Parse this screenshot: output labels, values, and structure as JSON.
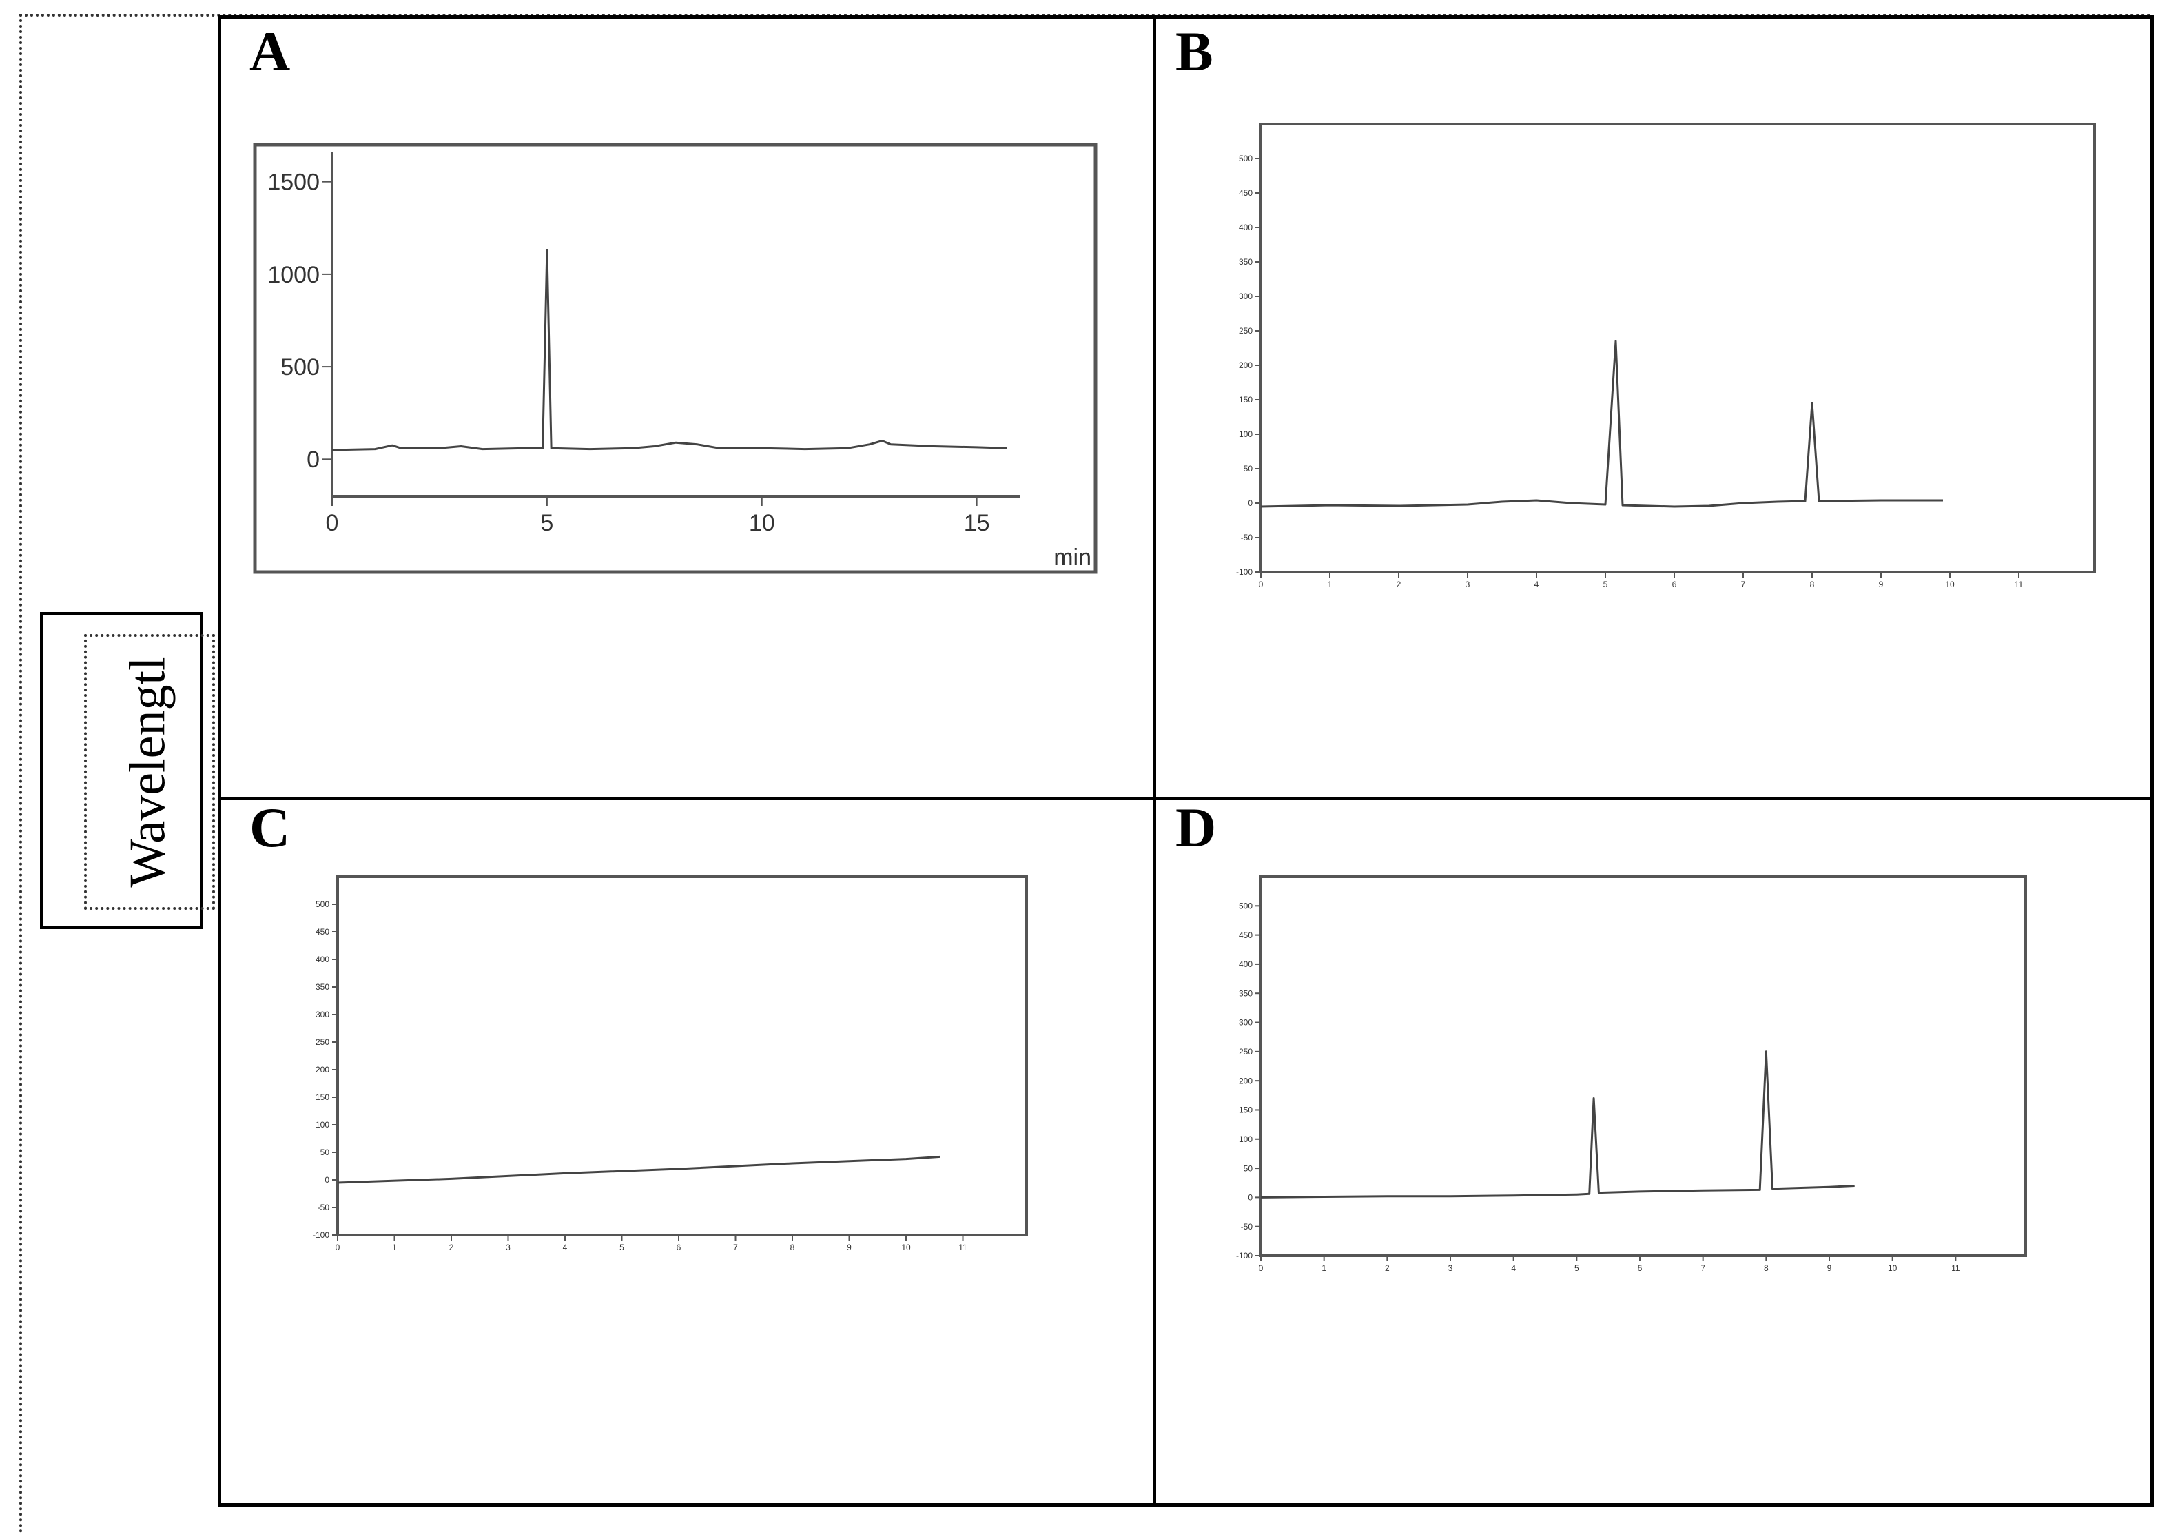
{
  "side_label": "Wavelengtl",
  "chart_data": [
    {
      "panel": "A",
      "type": "line",
      "xlabel": "min",
      "ylabel": "",
      "xlim": [
        0,
        16
      ],
      "ylim": [
        -200,
        1700
      ],
      "x_ticks": [
        0,
        5,
        10,
        15
      ],
      "y_ticks": [
        0,
        500,
        1000,
        1500
      ],
      "series": [
        {
          "points": [
            [
              0,
              50
            ],
            [
              1,
              55
            ],
            [
              1.4,
              75
            ],
            [
              1.6,
              60
            ],
            [
              2.5,
              60
            ],
            [
              3,
              70
            ],
            [
              3.5,
              55
            ],
            [
              4.5,
              60
            ],
            [
              4.9,
              60
            ],
            [
              5.0,
              1130
            ],
            [
              5.1,
              60
            ],
            [
              6,
              55
            ],
            [
              7,
              60
            ],
            [
              7.5,
              70
            ],
            [
              8,
              90
            ],
            [
              8.5,
              80
            ],
            [
              9,
              60
            ],
            [
              10,
              60
            ],
            [
              11,
              55
            ],
            [
              12,
              60
            ],
            [
              12.5,
              80
            ],
            [
              12.8,
              100
            ],
            [
              13,
              80
            ],
            [
              14,
              70
            ],
            [
              15,
              65
            ],
            [
              15.7,
              60
            ]
          ]
        }
      ]
    },
    {
      "panel": "B",
      "type": "line",
      "xlabel": "",
      "ylabel": "",
      "xlim": [
        0,
        12
      ],
      "ylim": [
        -100,
        550
      ],
      "x_ticks": [
        0,
        1,
        2,
        3,
        4,
        5,
        6,
        7,
        8,
        9,
        10,
        11
      ],
      "y_ticks": [
        -100,
        -50,
        0,
        50,
        100,
        150,
        200,
        250,
        300,
        350,
        400,
        450,
        500
      ],
      "series": [
        {
          "points": [
            [
              0,
              -5
            ],
            [
              1,
              -3
            ],
            [
              2,
              -4
            ],
            [
              3,
              -2
            ],
            [
              3.5,
              2
            ],
            [
              4,
              4
            ],
            [
              4.5,
              0
            ],
            [
              5,
              -2
            ],
            [
              5.15,
              235
            ],
            [
              5.25,
              -3
            ],
            [
              6,
              -5
            ],
            [
              6.5,
              -4
            ],
            [
              7,
              0
            ],
            [
              7.5,
              2
            ],
            [
              7.9,
              3
            ],
            [
              8.0,
              145
            ],
            [
              8.1,
              3
            ],
            [
              9,
              4
            ],
            [
              9.9,
              4
            ]
          ]
        }
      ]
    },
    {
      "panel": "C",
      "type": "line",
      "xlabel": "",
      "ylabel": "",
      "xlim": [
        0,
        12
      ],
      "ylim": [
        -100,
        550
      ],
      "x_ticks": [
        0,
        1,
        2,
        3,
        4,
        5,
        6,
        7,
        8,
        9,
        10,
        11
      ],
      "y_ticks": [
        -100,
        -50,
        0,
        50,
        100,
        150,
        200,
        250,
        300,
        350,
        400,
        450,
        500
      ],
      "series": [
        {
          "points": [
            [
              0,
              -5
            ],
            [
              2,
              2
            ],
            [
              4,
              12
            ],
            [
              6,
              20
            ],
            [
              8,
              30
            ],
            [
              10,
              38
            ],
            [
              10.6,
              42
            ]
          ]
        }
      ]
    },
    {
      "panel": "D",
      "type": "line",
      "xlabel": "",
      "ylabel": "",
      "xlim": [
        0,
        12
      ],
      "ylim": [
        -100,
        550
      ],
      "x_ticks": [
        0,
        1,
        2,
        3,
        4,
        5,
        6,
        7,
        8,
        9,
        10,
        11
      ],
      "y_ticks": [
        -100,
        -50,
        0,
        50,
        100,
        150,
        200,
        250,
        300,
        350,
        400,
        450,
        500
      ],
      "series": [
        {
          "points": [
            [
              0,
              0
            ],
            [
              1,
              1
            ],
            [
              2,
              2
            ],
            [
              3,
              2
            ],
            [
              4,
              3
            ],
            [
              5,
              5
            ],
            [
              5.2,
              6
            ],
            [
              5.27,
              170
            ],
            [
              5.35,
              8
            ],
            [
              6,
              10
            ],
            [
              7,
              12
            ],
            [
              7.9,
              13
            ],
            [
              8.0,
              250
            ],
            [
              8.1,
              15
            ],
            [
              9,
              18
            ],
            [
              9.4,
              20
            ]
          ]
        }
      ]
    }
  ]
}
